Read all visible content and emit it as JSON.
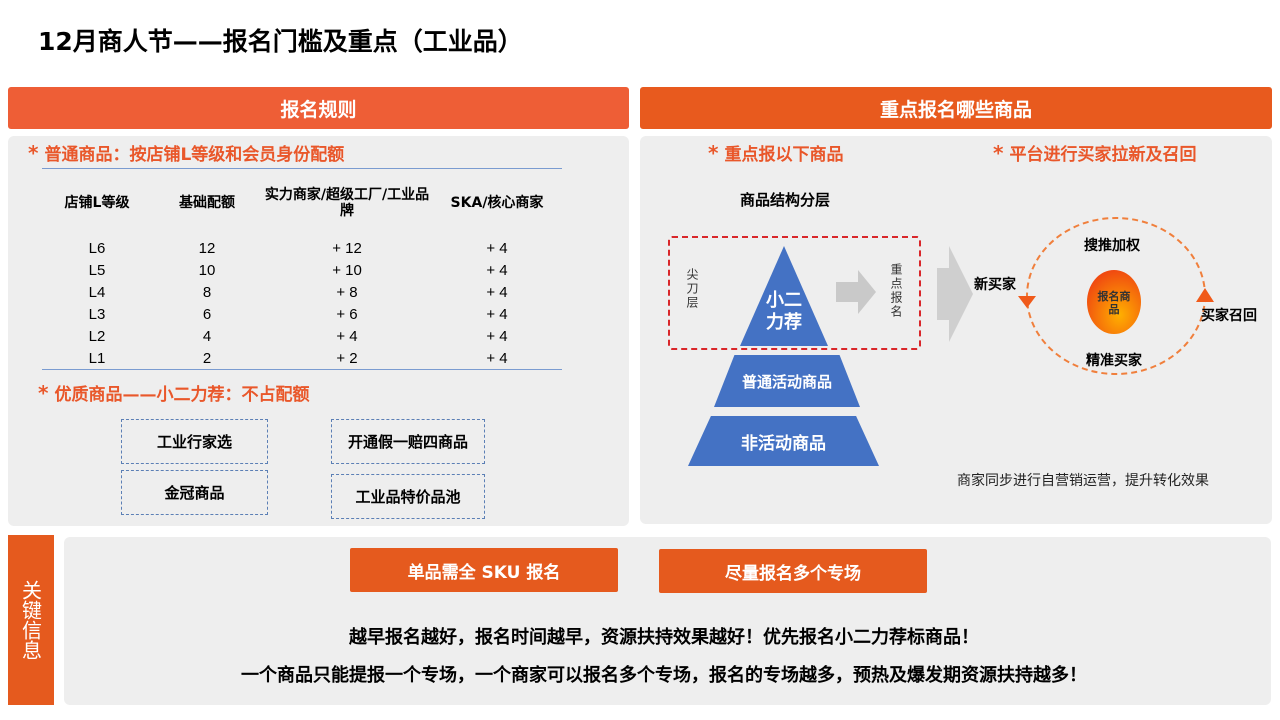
{
  "title": "12月商人节——报名门槛及重点（工业品）",
  "colors": {
    "accent": "#e9572a",
    "pyramid": "#4472c4",
    "panel": "#eeeeee"
  },
  "left": {
    "header": "报名规则",
    "normal_heading": "普通商品：按店铺L等级和会员身份配额",
    "table": {
      "headers": [
        "店铺L等级",
        "基础配额",
        "实力商家/超级工厂/工业品牌",
        "SKA/核心商家"
      ],
      "rows": [
        [
          "L6",
          "12",
          "+ 12",
          "+ 4"
        ],
        [
          "L5",
          "10",
          "+ 10",
          "+ 4"
        ],
        [
          "L4",
          "8",
          "+ 8",
          "+ 4"
        ],
        [
          "L3",
          "6",
          "+ 6",
          "+ 4"
        ],
        [
          "L2",
          "4",
          "+ 4",
          "+ 4"
        ],
        [
          "L1",
          "2",
          "+ 2",
          "+ 4"
        ]
      ]
    },
    "quality_heading": "优质商品——小二力荐：不占配额",
    "boxes": [
      "工业行家选",
      "开通假一赔四商品",
      "金冠商品",
      "工业品特价品池"
    ]
  },
  "right": {
    "header": "重点报名哪些商品",
    "sub1": "重点报以下商品",
    "sub2": "平台进行买家拉新及召回",
    "structure_title": "商品结构分层",
    "tip_label": "尖刀层",
    "focus_label": "重点报名",
    "pyramid": [
      "小二力荐",
      "普通活动商品",
      "非活动商品"
    ],
    "cycle": {
      "top": "搜推加权",
      "bottom": "精准买家",
      "left": "新买家",
      "right": "买家召回",
      "center": "报名商品"
    },
    "note": "商家同步进行自营销运营，提升转化效果"
  },
  "bottom": {
    "side_label": "关键信息",
    "btn1": "单品需全 SKU 报名",
    "btn2": "尽量报名多个专场",
    "line1": "越早报名越好，报名时间越早，资源扶持效果越好！优先报名小二力荐标商品！",
    "line2": "一个商品只能提报一个专场，一个商家可以报名多个专场，报名的专场越多，预热及爆发期资源扶持越多！"
  }
}
